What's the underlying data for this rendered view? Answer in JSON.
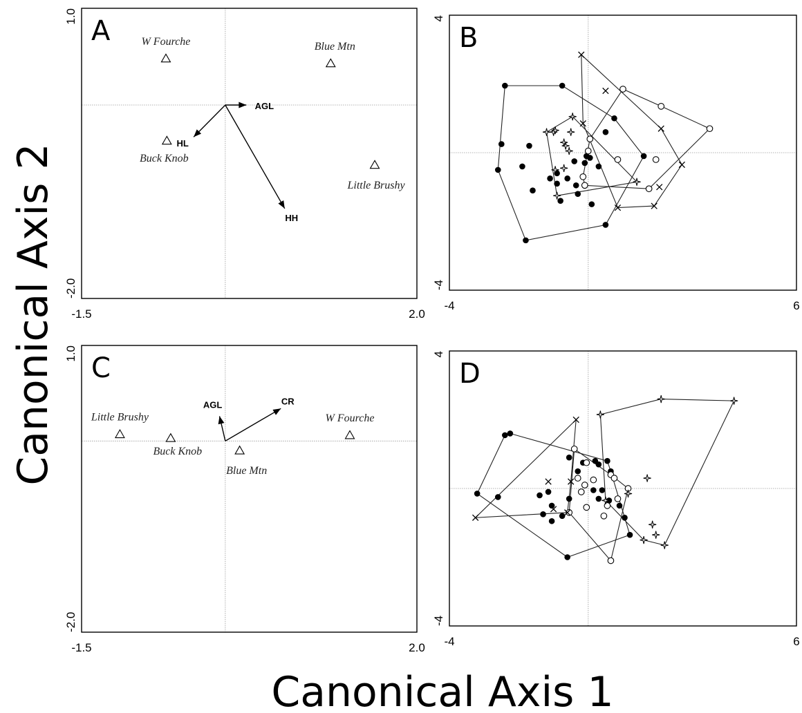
{
  "axis_titles": {
    "x": "Canonical Axis 1",
    "y": "Canonical Axis 2"
  },
  "chart_data": [
    {
      "panel": "A",
      "type": "biplot",
      "xlim": [
        -1.5,
        2.0
      ],
      "ylim": [
        -2.0,
        1.0
      ],
      "x_tick_labels": [
        "-1.5",
        "2.0"
      ],
      "y_tick_labels": [
        "1.0",
        "-2.0"
      ],
      "reference_lines": {
        "x": 0,
        "y": 0
      },
      "sites": [
        {
          "label": "W Fourche",
          "x": -0.62,
          "y": 0.48
        },
        {
          "label": "Blue Mtn",
          "x": 1.1,
          "y": 0.43
        },
        {
          "label": "Buck Knob",
          "x": -0.61,
          "y": -0.37
        },
        {
          "label": "Little Brushy",
          "x": 1.56,
          "y": -0.62
        }
      ],
      "vectors": [
        {
          "label": "AGL",
          "x": 0.22,
          "y": 0.0
        },
        {
          "label": "HL",
          "x": -0.33,
          "y": -0.33
        },
        {
          "label": "HH",
          "x": 0.62,
          "y": -1.07
        }
      ]
    },
    {
      "panel": "B",
      "type": "scatter",
      "xlim": [
        -4,
        6
      ],
      "ylim": [
        -4,
        4
      ],
      "x_tick_labels": [
        "-4",
        "6"
      ],
      "y_tick_labels": [
        "4",
        "-4"
      ],
      "reference_lines": {
        "x": 0,
        "y": 0
      },
      "series": [
        {
          "marker": "filled-circle",
          "points": [
            [
              -2.4,
              1.95
            ],
            [
              -2.6,
              -0.5
            ],
            [
              -2.5,
              0.25
            ],
            [
              -1.8,
              -2.55
            ],
            [
              -1.9,
              -0.4
            ],
            [
              -1.7,
              0.2
            ],
            [
              -0.75,
              1.95
            ],
            [
              0.75,
              1.0
            ],
            [
              0.5,
              0.6
            ],
            [
              -0.9,
              -0.6
            ],
            [
              -1.1,
              -0.75
            ],
            [
              -0.9,
              -0.9
            ],
            [
              -0.6,
              -0.75
            ],
            [
              -0.4,
              -0.25
            ],
            [
              -0.1,
              -0.3
            ],
            [
              -0.05,
              -0.1
            ],
            [
              0.05,
              -0.15
            ],
            [
              0.3,
              -0.4
            ],
            [
              -0.35,
              -0.95
            ],
            [
              -0.3,
              -1.2
            ],
            [
              -1.6,
              -1.1
            ],
            [
              -0.8,
              -1.4
            ],
            [
              0.1,
              -1.5
            ],
            [
              0.5,
              -2.1
            ],
            [
              1.6,
              -0.1
            ]
          ]
        },
        {
          "marker": "open-circle",
          "points": [
            [
              1.0,
              1.85
            ],
            [
              2.1,
              1.35
            ],
            [
              3.5,
              0.7
            ],
            [
              0.05,
              0.4
            ],
            [
              0.0,
              0.05
            ],
            [
              0.85,
              -0.2
            ],
            [
              1.95,
              -0.2
            ],
            [
              -0.15,
              -0.7
            ],
            [
              -0.1,
              -0.95
            ],
            [
              1.75,
              -1.05
            ]
          ]
        },
        {
          "marker": "x-cross",
          "points": [
            [
              -0.2,
              2.85
            ],
            [
              -0.15,
              0.85
            ],
            [
              2.1,
              0.7
            ],
            [
              2.7,
              -0.35
            ],
            [
              2.05,
              -1.0
            ],
            [
              0.85,
              -1.6
            ],
            [
              1.9,
              -1.55
            ],
            [
              0.5,
              1.8
            ]
          ]
        },
        {
          "marker": "four-point-star",
          "points": [
            [
              -1.2,
              0.6
            ],
            [
              -1.0,
              0.6
            ],
            [
              -0.95,
              0.65
            ],
            [
              -0.45,
              1.05
            ],
            [
              -0.5,
              0.6
            ],
            [
              -0.65,
              0.2
            ],
            [
              -0.7,
              0.3
            ],
            [
              -0.55,
              0.05
            ],
            [
              -0.95,
              -0.5
            ],
            [
              -0.7,
              -0.45
            ],
            [
              -0.9,
              -1.25
            ],
            [
              1.4,
              -0.85
            ]
          ]
        }
      ]
    },
    {
      "panel": "C",
      "type": "biplot",
      "xlim": [
        -1.5,
        2.0
      ],
      "ylim": [
        -2.0,
        1.0
      ],
      "x_tick_labels": [
        "-1.5",
        "2.0"
      ],
      "y_tick_labels": [
        "1.0",
        "-2.0"
      ],
      "reference_lines": {
        "x": 0,
        "y": 0
      },
      "sites": [
        {
          "label": "Little Brushy",
          "x": -1.1,
          "y": 0.07
        },
        {
          "label": "Buck Knob",
          "x": -0.57,
          "y": 0.03
        },
        {
          "label": "W Fourche",
          "x": 1.3,
          "y": 0.06
        },
        {
          "label": "Blue Mtn",
          "x": 0.15,
          "y": -0.1
        }
      ],
      "vectors": [
        {
          "label": "AGL",
          "x": -0.06,
          "y": 0.26
        },
        {
          "label": "CR",
          "x": 0.58,
          "y": 0.34
        }
      ]
    },
    {
      "panel": "D",
      "type": "scatter",
      "xlim": [
        -4,
        6
      ],
      "ylim": [
        -4,
        4
      ],
      "x_tick_labels": [
        "-4",
        "6"
      ],
      "y_tick_labels": [
        "4",
        "-4"
      ],
      "reference_lines": {
        "x": 0,
        "y": 0
      },
      "series": [
        {
          "marker": "filled-circle",
          "points": [
            [
              -3.2,
              -0.15
            ],
            [
              -2.6,
              -0.25
            ],
            [
              -2.4,
              1.55
            ],
            [
              -2.25,
              1.6
            ],
            [
              -1.4,
              -0.2
            ],
            [
              -1.15,
              -0.1
            ],
            [
              -1.3,
              -0.75
            ],
            [
              -1.05,
              -0.5
            ],
            [
              -1.05,
              -0.95
            ],
            [
              -0.75,
              -0.8
            ],
            [
              -0.55,
              -0.3
            ],
            [
              -0.55,
              0.9
            ],
            [
              -0.3,
              0.5
            ],
            [
              -0.15,
              0.75
            ],
            [
              0.3,
              0.7
            ],
            [
              0.2,
              0.8
            ],
            [
              0.55,
              0.8
            ],
            [
              0.65,
              0.5
            ],
            [
              0.4,
              -0.05
            ],
            [
              0.6,
              -0.35
            ],
            [
              0.9,
              -0.5
            ],
            [
              1.05,
              -0.85
            ],
            [
              1.2,
              -1.35
            ],
            [
              -0.6,
              -2.0
            ],
            [
              0.3,
              -0.3
            ],
            [
              0.15,
              -0.05
            ]
          ]
        },
        {
          "marker": "open-circle",
          "points": [
            [
              -0.4,
              1.15
            ],
            [
              -0.05,
              0.75
            ],
            [
              0.65,
              0.4
            ],
            [
              0.75,
              0.3
            ],
            [
              1.15,
              0.0
            ],
            [
              -0.3,
              0.3
            ],
            [
              -0.1,
              0.1
            ],
            [
              -0.2,
              -0.1
            ],
            [
              0.15,
              0.25
            ],
            [
              0.55,
              -0.5
            ],
            [
              0.85,
              -0.3
            ],
            [
              0.45,
              -0.8
            ],
            [
              -0.55,
              -0.7
            ],
            [
              0.65,
              -2.1
            ],
            [
              -0.05,
              -0.55
            ]
          ]
        },
        {
          "marker": "x-cross",
          "points": [
            [
              -3.25,
              -0.85
            ],
            [
              -1.15,
              0.2
            ],
            [
              -0.35,
              2.0
            ],
            [
              -0.5,
              0.2
            ],
            [
              -1.0,
              -0.6
            ],
            [
              -0.6,
              -0.7
            ]
          ]
        },
        {
          "marker": "four-point-star",
          "points": [
            [
              0.35,
              2.15
            ],
            [
              2.1,
              2.6
            ],
            [
              4.2,
              2.55
            ],
            [
              1.7,
              0.3
            ],
            [
              1.85,
              -1.05
            ],
            [
              1.95,
              -1.35
            ],
            [
              2.2,
              -1.65
            ],
            [
              1.15,
              -0.15
            ],
            [
              0.5,
              -0.35
            ],
            [
              1.6,
              -1.5
            ]
          ]
        }
      ]
    }
  ]
}
